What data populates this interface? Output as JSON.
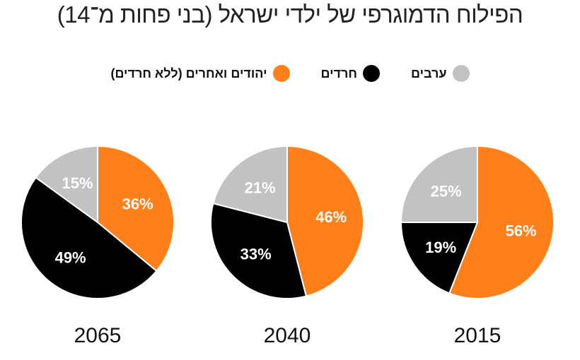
{
  "chart_data": {
    "type": "pie",
    "title": "הפילוח הדמוגרפי של ילדי ישראל (בני פחות מ־14)",
    "legend": [
      {
        "label": "ערבים",
        "color": "#c2c2c2"
      },
      {
        "label": "חרדים",
        "color": "#000000"
      },
      {
        "label": "יהודים ואחרים (ללא חרדים)",
        "color": "#ff7f1a"
      }
    ],
    "legend_placement": "top-center",
    "series_order": [
      "יהודים ואחרים (ללא חרדים)",
      "חרדים",
      "ערבים"
    ],
    "pies": [
      {
        "year": "2065",
        "values": [
          36,
          49,
          15
        ],
        "labels": [
          "36%",
          "49%",
          "15%"
        ]
      },
      {
        "year": "2040",
        "values": [
          46,
          33,
          21
        ],
        "labels": [
          "46%",
          "33%",
          "21%"
        ]
      },
      {
        "year": "2015",
        "values": [
          56,
          19,
          25
        ],
        "labels": [
          "56%",
          "19%",
          "25%"
        ]
      }
    ]
  }
}
